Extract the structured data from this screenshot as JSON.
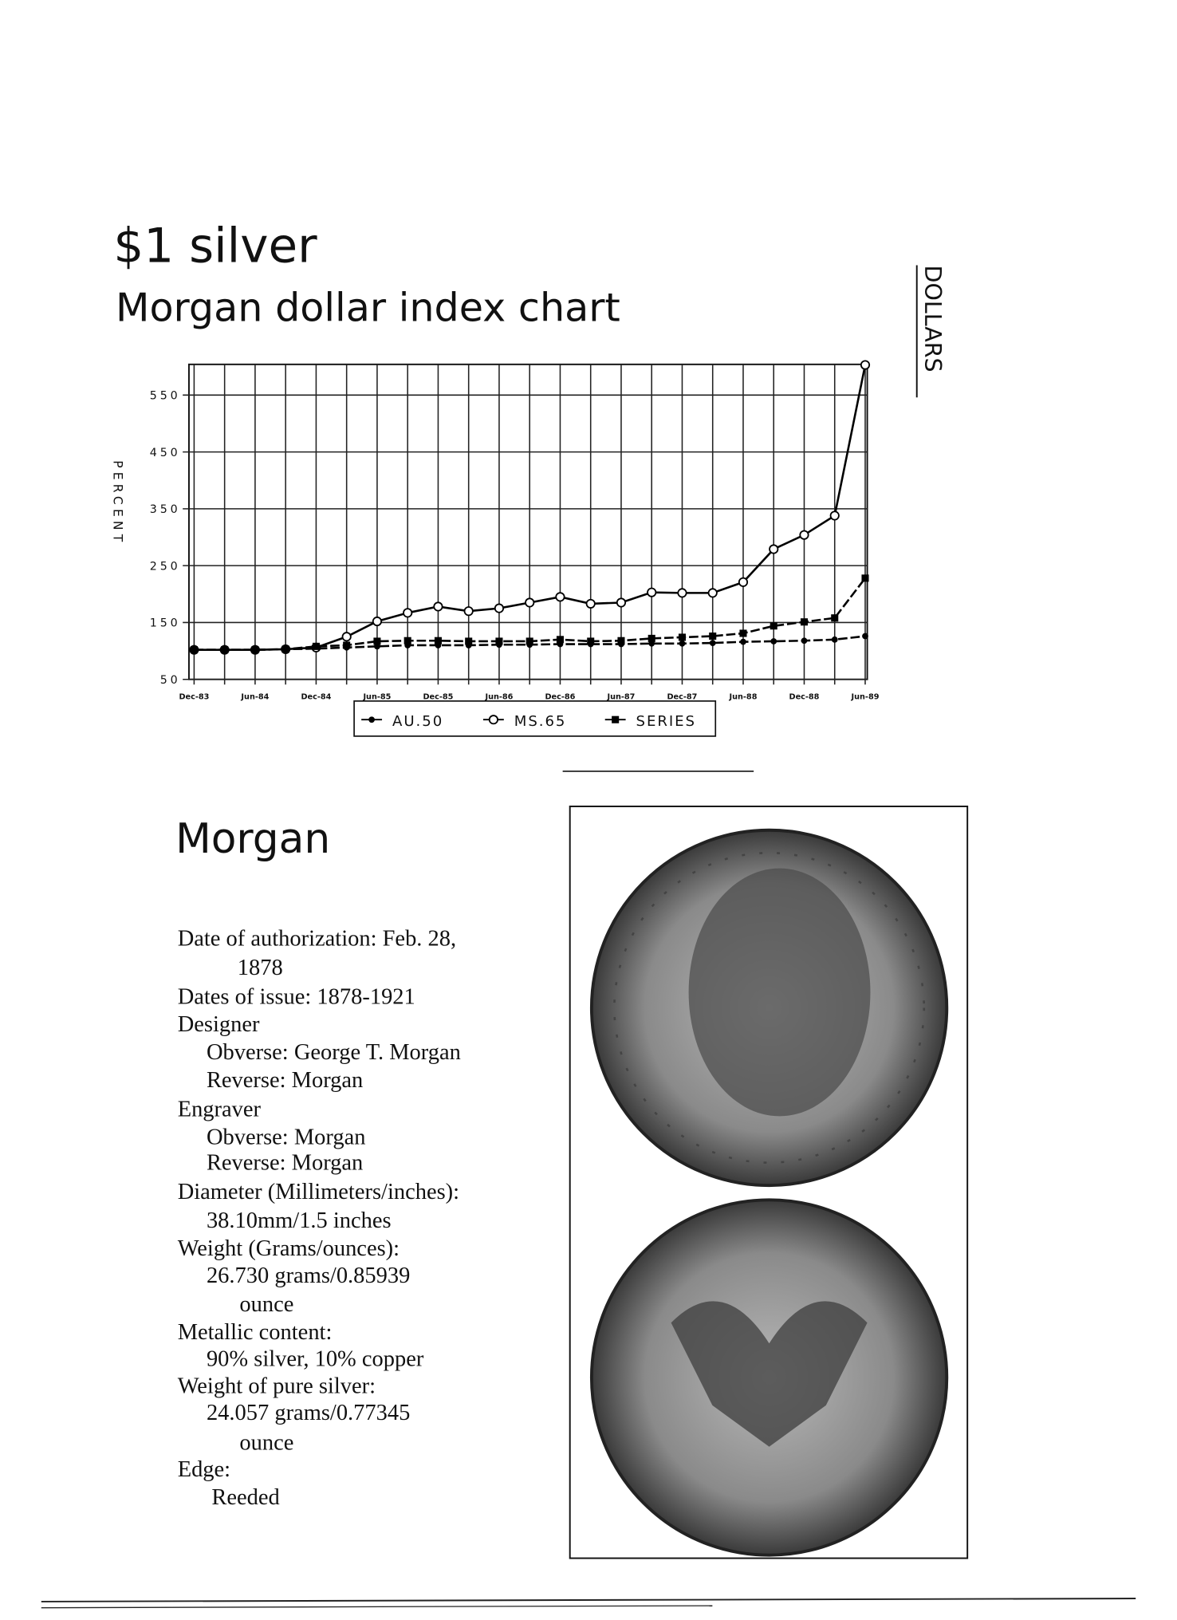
{
  "header": {
    "title": "$1 silver",
    "subtitle": "Morgan dollar index chart",
    "side_label": "DOLLARS"
  },
  "chart_data": {
    "type": "line",
    "y_label": "PERCENT",
    "categories": [
      "Dec-83",
      null,
      "Jun-84",
      null,
      "Dec-84",
      null,
      "Jun-85",
      null,
      "Dec-85",
      null,
      "Jun-86",
      null,
      "Dec-86",
      null,
      "Jun-87",
      null,
      "Dec-87",
      null,
      "Jun-88",
      null,
      "Dec-88",
      null,
      "Jun-89"
    ],
    "series": [
      {
        "name": "AU.50",
        "color": "#000000",
        "marker": "dot",
        "values": [
          102,
          102,
          102,
          103,
          104,
          106,
          108,
          110,
          110,
          110,
          111,
          111,
          112,
          112,
          112,
          113,
          113,
          114,
          116,
          117,
          118,
          120,
          126
        ]
      },
      {
        "name": "MS.65",
        "color": "#000000",
        "marker": "circle",
        "values": [
          102,
          102,
          102,
          103,
          106,
          125,
          152,
          167,
          178,
          170,
          175,
          185,
          195,
          183,
          185,
          203,
          202,
          202,
          221,
          279,
          304,
          338,
          603
        ]
      },
      {
        "name": "SERIES",
        "color": "#000000",
        "marker": "square",
        "values": [
          102,
          102,
          102,
          103,
          108,
          110,
          117,
          118,
          118,
          117,
          117,
          117,
          120,
          117,
          118,
          122,
          124,
          126,
          131,
          144,
          151,
          158,
          228
        ]
      }
    ],
    "ylim": [
      50,
      604
    ],
    "yticks": [
      50,
      150,
      250,
      350,
      450,
      550
    ],
    "grid": true
  },
  "section": {
    "title": "Morgan",
    "lines": [
      "Date of authorization: Feb. 28,",
      "1878",
      "Dates of issue: 1878-1921",
      "Designer",
      "Obverse: George T. Morgan",
      "Reverse: Morgan",
      "Engraver",
      "Obverse: Morgan",
      "Reverse: Morgan",
      "Diameter (Millimeters/inches):",
      "38.10mm/1.5 inches",
      "Weight (Grams/ounces):",
      "26.730 grams/0.85939",
      "ounce",
      "Metallic content:",
      "90% silver, 10% copper",
      "Weight of pure silver:",
      "24.057 grams/0.77345",
      "ounce",
      "Edge:",
      "Reeded"
    ]
  }
}
